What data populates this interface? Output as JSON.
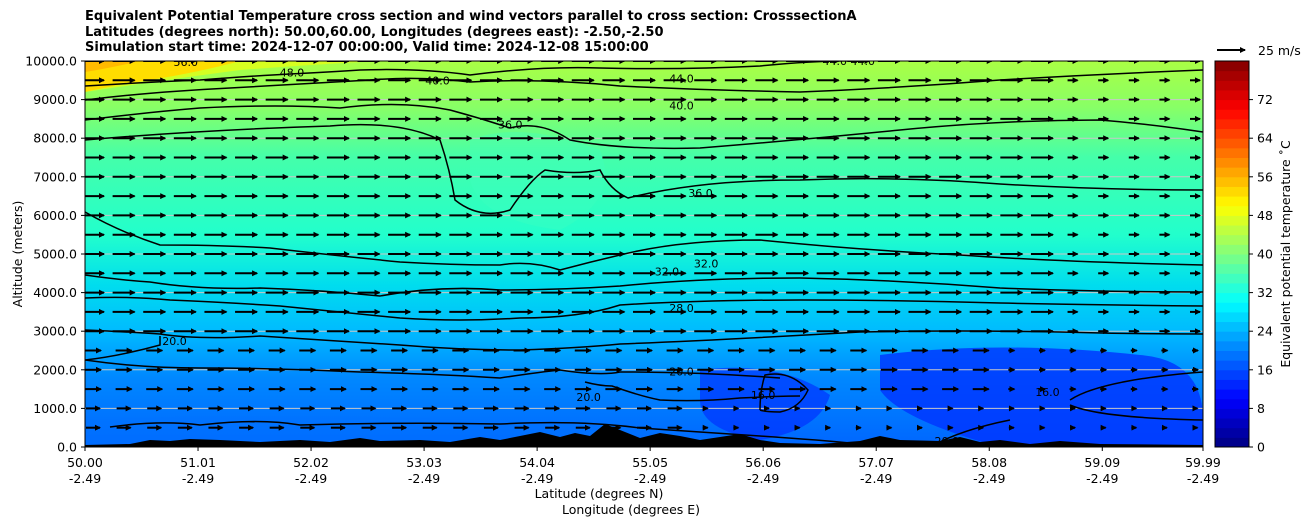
{
  "title_lines": [
    "Equivalent Potential Temperature cross section and wind vectors parallel to cross section: CrosssectionA",
    "Latitudes (degrees north): 50.00,60.00, Longitudes (degrees east): -2.50,-2.50",
    "Simulation start time: 2024-12-07 00:00:00, Valid time: 2024-12-08 15:00:00"
  ],
  "chart_data": {
    "type": "heatmap",
    "subtype": "filled contour cross section with contour lines and wind vectors",
    "ylabel": "Altitude (meters)",
    "xlabel_line1": "Latitude (degrees N)",
    "xlabel_line2": "Longitude (degrees E)",
    "x_range": [
      50.0,
      59.99
    ],
    "y_range": [
      0,
      10000
    ],
    "x_ticks": [
      {
        "lat": "50.00",
        "lon": "-2.49",
        "v": 50.0
      },
      {
        "lat": "51.01",
        "lon": "-2.49",
        "v": 51.01
      },
      {
        "lat": "52.02",
        "lon": "-2.49",
        "v": 52.02
      },
      {
        "lat": "53.03",
        "lon": "-2.49",
        "v": 53.03
      },
      {
        "lat": "54.04",
        "lon": "-2.49",
        "v": 54.04
      },
      {
        "lat": "55.05",
        "lon": "-2.49",
        "v": 55.05
      },
      {
        "lat": "56.06",
        "lon": "-2.49",
        "v": 56.06
      },
      {
        "lat": "57.07",
        "lon": "-2.49",
        "v": 57.07
      },
      {
        "lat": "58.08",
        "lon": "-2.49",
        "v": 58.08
      },
      {
        "lat": "59.09",
        "lon": "-2.49",
        "v": 59.09
      },
      {
        "lat": "59.99",
        "lon": "-2.49",
        "v": 59.99
      }
    ],
    "y_ticks": [
      "0.0",
      "1000.0",
      "2000.0",
      "3000.0",
      "4000.0",
      "5000.0",
      "6000.0",
      "7000.0",
      "8000.0",
      "9000.0",
      "10000.0"
    ],
    "grid": "horizontal",
    "colorbar": {
      "label": "Equivalent potential temperature $^\\circ$C",
      "label_text": "Equivalent potential temperature ˚C",
      "range": [
        0,
        80
      ],
      "ticks": [
        "0",
        "8",
        "16",
        "24",
        "32",
        "40",
        "48",
        "56",
        "64",
        "72"
      ],
      "levels_step": 2
    },
    "wind_key": {
      "label": "25 m/s",
      "placement": "top-right"
    },
    "contour_labels": [
      {
        "text": "44.0",
        "x": 55.33,
        "y": 9550
      },
      {
        "text": "40.0",
        "x": 55.33,
        "y": 8850
      },
      {
        "text": "40.0",
        "x": 53.15,
        "y": 9500
      },
      {
        "text": "48.0",
        "x": 51.85,
        "y": 9700
      },
      {
        "text": "56.0",
        "x": 50.9,
        "y": 9980
      },
      {
        "text": "44.0",
        "x": 56.7,
        "y": 10000
      },
      {
        "text": "44.0",
        "x": 56.95,
        "y": 10000
      },
      {
        "text": "36.0",
        "x": 53.8,
        "y": 8350
      },
      {
        "text": "36.0",
        "x": 55.5,
        "y": 6580
      },
      {
        "text": "32.0",
        "x": 55.2,
        "y": 4550
      },
      {
        "text": "32.0",
        "x": 55.55,
        "y": 4750
      },
      {
        "text": "28.0",
        "x": 55.33,
        "y": 3600
      },
      {
        "text": "20.0",
        "x": 50.8,
        "y": 2750
      },
      {
        "text": "20.0",
        "x": 55.33,
        "y": 1950
      },
      {
        "text": "20.0",
        "x": 54.5,
        "y": 1290
      },
      {
        "text": "16.0",
        "x": 56.06,
        "y": 1350
      },
      {
        "text": "16.0",
        "x": 58.6,
        "y": 1430
      },
      {
        "text": "20.0",
        "x": 57.7,
        "y": 150
      }
    ]
  }
}
